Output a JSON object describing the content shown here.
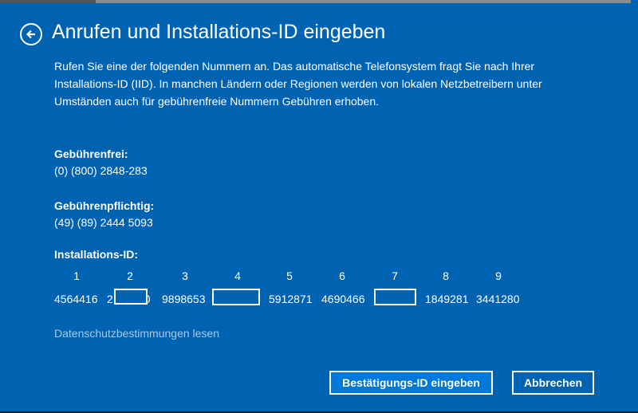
{
  "dialog": {
    "title": "Anrufen und Installations-ID eingeben",
    "back_icon": "back-arrow-circle-icon",
    "description": "Rufen Sie eine der folgenden Nummern an. Das automatische Telefonsystem fragt Sie nach Ihrer Installations-ID (IID). In manchen Ländern oder Regionen werden von lokalen Netzbetreibern unter Umständen auch für gebührenfreie Nummern Gebühren erhoben.",
    "tollfree_label": "Gebührenfrei:",
    "tollfree_number": "(0) (800) 2848-283",
    "toll_label": "Gebührenpflichtig:",
    "toll_number": "(49) (89) 2444 5093",
    "iid_label": "Installations-ID:",
    "iid_groups": [
      {
        "index": "1",
        "value": "4564416"
      },
      {
        "index": "2",
        "value_prefix": "2",
        "value_suffix": "0",
        "redacted": true
      },
      {
        "index": "3",
        "value": "9898653"
      },
      {
        "index": "4",
        "redacted": true
      },
      {
        "index": "5",
        "value": "5912871"
      },
      {
        "index": "6",
        "value": "4690466"
      },
      {
        "index": "7",
        "redacted": true
      },
      {
        "index": "8",
        "value": "1849281"
      },
      {
        "index": "9",
        "value": "3441280"
      }
    ],
    "privacy_link": "Datenschutzbestimmungen lesen",
    "confirm_button": "Bestätigungs-ID eingeben",
    "cancel_button": "Abbrechen"
  },
  "colors": {
    "background": "#0063b1",
    "primary_button": "#0078d7",
    "link": "#a6c8ec"
  }
}
